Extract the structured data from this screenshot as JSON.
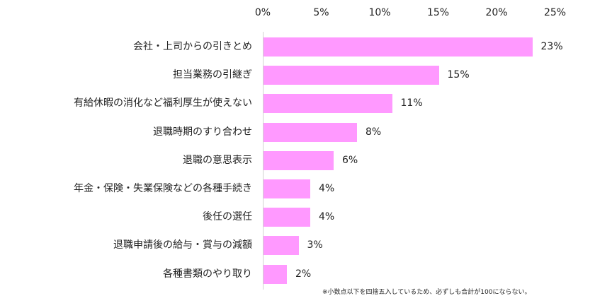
{
  "chart_data": {
    "type": "bar",
    "orientation": "horizontal",
    "title": "",
    "xlabel": "",
    "ylabel": "",
    "xlim": [
      0,
      25
    ],
    "x_ticks": [
      "0%",
      "5%",
      "10%",
      "15%",
      "20%",
      "25%"
    ],
    "grid": false,
    "legend": null,
    "bar_color": "#ff99ff",
    "categories": [
      "会社・上司からの引きとめ",
      "担当業務の引継ぎ",
      "有給休暇の消化など福利厚生が使えない",
      "退職時期のすり合わせ",
      "退職の意思表示",
      "年金・保険・失業保険などの各種手続き",
      "後任の選任",
      "退職申請後の給与・賞与の減額",
      "各種書類のやり取り"
    ],
    "values": [
      23,
      15,
      11,
      8,
      6,
      4,
      4,
      3,
      2
    ],
    "value_labels": [
      "23%",
      "15%",
      "11%",
      "8%",
      "6%",
      "4%",
      "4%",
      "3%",
      "2%"
    ],
    "annotations": [
      "※小数点以下を四捨五入しているため、必ずしも合計が100にならない。"
    ]
  }
}
